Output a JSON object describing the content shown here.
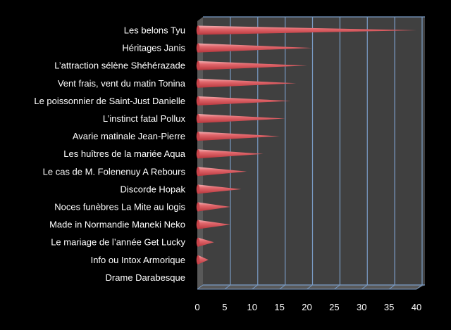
{
  "chart_data": {
    "type": "bar",
    "orientation": "horizontal",
    "style": "3d-cone",
    "categories": [
      "Les belons Tyu",
      "Héritages Janis",
      "L’attraction sélène Shéhérazade",
      "Vent frais, vent du matin Tonina",
      "Le poissonnier de  Saint-Just Danielle",
      "L’instinct fatal Pollux",
      "Avarie matinale Jean-Pierre",
      "Les huîtres de la mariée Aqua",
      "Le cas de M. Folenenuy A Rebours",
      "Discorde  Hopak",
      "Noces funèbres  La Mite au logis",
      "Made in Normandie Maneki Neko",
      "Le mariage de l’année Get Lucky",
      "Info ou Intox Armorique",
      "Drame Darabesque"
    ],
    "values": [
      39,
      20,
      19,
      17,
      16,
      15,
      14,
      11,
      8,
      7,
      5,
      5,
      2,
      1,
      0
    ],
    "xlim": [
      0,
      40
    ],
    "xticks": [
      "0",
      "5",
      "10",
      "15",
      "20",
      "25",
      "30",
      "35",
      "40"
    ],
    "grid": true,
    "title": "",
    "xlabel": "",
    "ylabel": "",
    "colors": {
      "background": "#000000",
      "plot_back_wall": "#404040",
      "plot_floor": "#595959",
      "gridline": "#7a9cc6",
      "bar": "#d9545a",
      "bar_highlight": "#f2a4a6",
      "text": "#ffffff"
    }
  }
}
